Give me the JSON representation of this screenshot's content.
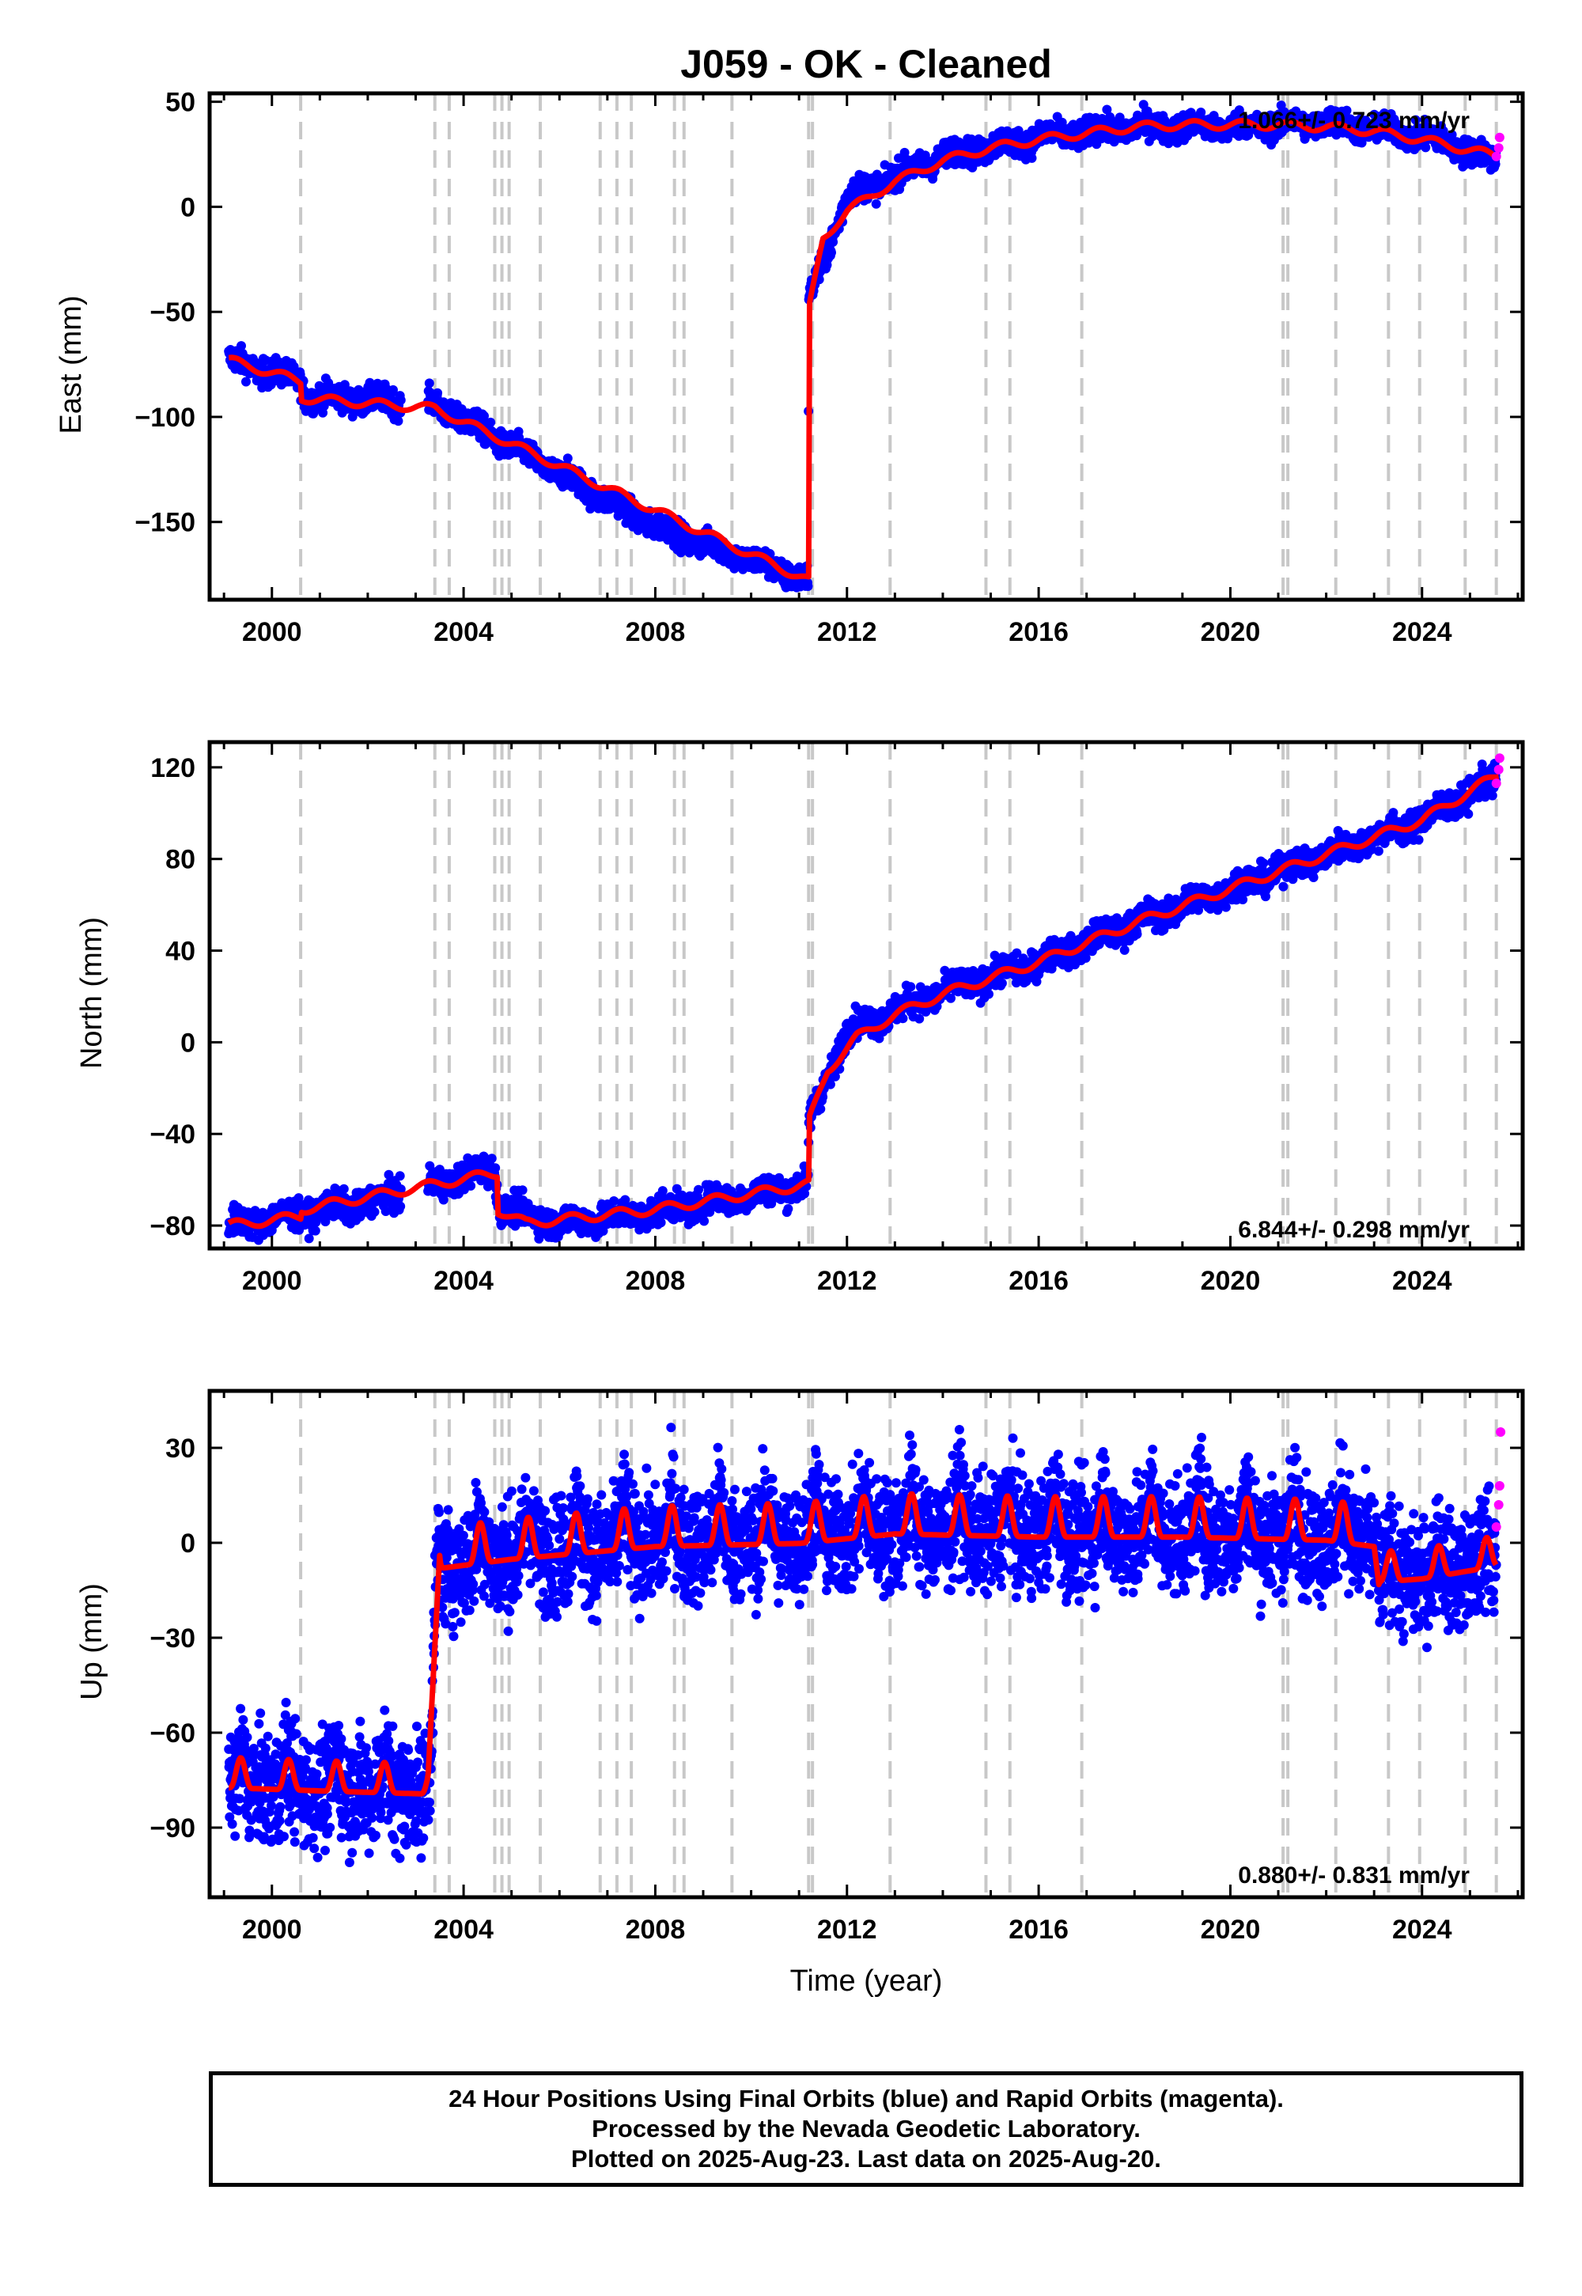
{
  "title": "J059  - OK - Cleaned",
  "xlabel": "Time (year)",
  "footer": {
    "line1": "24 Hour Positions Using Final Orbits (blue) and Rapid Orbits (magenta).",
    "line2": "Processed by the Nevada Geodetic Laboratory.",
    "line3": "Plotted on 2025-Aug-23. Last data on 2025-Aug-20."
  },
  "colors": {
    "final_orbits": "#0000ff",
    "rapid_orbits": "#ff00ff",
    "model_fit": "#ff0000",
    "equipment_changes": "#c8c8c8"
  },
  "chart_data": [
    {
      "type": "scatter",
      "component": "East",
      "ylabel": "East (mm)",
      "rate_label": "1.066+/- 0.723 mm/yr",
      "xlim": [
        1998.7,
        2026.1
      ],
      "ylim": [
        -187,
        54
      ],
      "xticks": [
        2000,
        2004,
        2008,
        2012,
        2016,
        2020,
        2024
      ],
      "yticks": [
        50,
        0,
        -50,
        -100,
        -150
      ],
      "ytick_labels": [
        "50",
        "0",
        "−50",
        "−100",
        "−150"
      ],
      "grid": false,
      "series": [
        {
          "name": "Final Orbits",
          "x": [
            1999.1,
            2000.6,
            2000.7,
            2003.4,
            2006,
            2008,
            2011.19,
            2011.2,
            2012,
            2014,
            2016,
            2018,
            2020,
            2022,
            2024,
            2025.55
          ],
          "values": [
            -73,
            -83,
            -90,
            -94,
            -127,
            -152,
            -178,
            -45,
            5,
            24,
            33,
            38,
            38,
            40,
            34,
            22
          ]
        },
        {
          "name": "Rapid Orbits",
          "x": [
            2025.55,
            2025.6,
            2025.62
          ],
          "values": [
            24,
            28,
            33
          ]
        }
      ],
      "model_fit": {
        "x": [
          1999.1,
          2000.6,
          2000.6,
          2003.4,
          2011.2,
          2011.2,
          2011.5,
          2012,
          2013,
          2014,
          2015,
          2016,
          2017,
          2018,
          2019,
          2020,
          2021,
          2022,
          2023,
          2024,
          2025,
          2025.6
        ],
        "values": [
          -73,
          -83,
          -91,
          -96,
          -178,
          -50,
          -15,
          -2,
          12,
          22,
          28,
          32,
          35,
          38,
          39,
          39,
          39,
          38,
          36,
          32,
          27,
          24
        ]
      },
      "vlines": [
        2000.6,
        2003.4,
        2003.7,
        2004.65,
        2004.8,
        2004.95,
        2005.6,
        2006.85,
        2007.2,
        2007.5,
        2008.4,
        2008.6,
        2009.6,
        2011.2,
        2011.28,
        2012.9,
        2014.9,
        2015.4,
        2016.9,
        2021.1,
        2021.2,
        2022.2,
        2023.3,
        2023.95,
        2024.9,
        2025.55
      ]
    },
    {
      "type": "scatter",
      "component": "North",
      "ylabel": "North (mm)",
      "rate_label": "6.844+/- 0.298 mm/yr",
      "xlim": [
        1998.7,
        2026.1
      ],
      "ylim": [
        -90,
        131
      ],
      "xticks": [
        2000,
        2004,
        2008,
        2012,
        2016,
        2020,
        2024
      ],
      "yticks": [
        120,
        80,
        40,
        0,
        -40,
        -80
      ],
      "ytick_labels": [
        "120",
        "80",
        "40",
        "0",
        "−40",
        "−80"
      ],
      "grid": false,
      "series": [
        {
          "name": "Final Orbits",
          "x": [
            1999.1,
            2000.6,
            2002,
            2003.4,
            2004.65,
            2004.75,
            2006,
            2008,
            2011.19,
            2011.2,
            2012,
            2014,
            2016,
            2018,
            2020,
            2022,
            2024,
            2025.55
          ],
          "values": [
            -80,
            -75,
            -70,
            -62,
            -55,
            -72,
            -79,
            -74,
            -62,
            -35,
            5,
            22,
            35,
            52,
            67,
            82,
            97,
            115
          ]
        },
        {
          "name": "Rapid Orbits",
          "x": [
            2025.55,
            2025.6,
            2025.62
          ],
          "values": [
            113,
            119,
            124
          ]
        }
      ],
      "model_fit": {
        "x": [
          1999.1,
          2000.6,
          2000.6,
          2003.4,
          2004.7,
          2004.7,
          2005.3,
          2008,
          2011.2,
          2011.2,
          2011.6,
          2012.2,
          2013,
          2014,
          2016,
          2018,
          2020,
          2022,
          2024,
          2025.6
        ],
        "values": [
          -80,
          -76,
          -73,
          -62,
          -57,
          -73,
          -79,
          -73,
          -62,
          -35,
          -12,
          2,
          12,
          21,
          35,
          52,
          67,
          82,
          97,
          117
        ]
      },
      "vlines": [
        2000.6,
        2003.4,
        2003.7,
        2004.65,
        2004.8,
        2004.95,
        2005.6,
        2006.85,
        2007.2,
        2007.5,
        2008.4,
        2008.6,
        2009.6,
        2011.2,
        2011.28,
        2012.9,
        2014.9,
        2015.4,
        2016.9,
        2021.1,
        2021.2,
        2022.2,
        2023.3,
        2023.95,
        2024.9,
        2025.55
      ]
    },
    {
      "type": "scatter",
      "component": "Up",
      "ylabel": "Up (mm)",
      "rate_label": "0.880+/- 0.831 mm/yr",
      "xlim": [
        1998.7,
        2026.1
      ],
      "ylim": [
        -112,
        48
      ],
      "xticks": [
        2000,
        2004,
        2008,
        2012,
        2016,
        2020,
        2024
      ],
      "yticks": [
        30,
        0,
        -30,
        -60,
        -90
      ],
      "ytick_labels": [
        "30",
        "0",
        "−30",
        "−60",
        "−90"
      ],
      "grid": false,
      "series": [
        {
          "name": "Final Orbits",
          "x": [
            1999.1,
            2001,
            2003.3,
            2003.45,
            2005,
            2008,
            2011,
            2013,
            2016,
            2019,
            2022,
            2023.0,
            2023.1,
            2024,
            2025.55
          ],
          "values": [
            -75,
            -76,
            -77,
            -5,
            -2,
            2,
            3,
            6,
            5,
            5,
            4,
            2,
            -10,
            -9,
            -5
          ]
        },
        {
          "name": "Rapid Orbits",
          "x": [
            2025.55,
            2025.6,
            2025.62,
            2025.64
          ],
          "values": [
            5,
            12,
            18,
            35
          ]
        }
      ],
      "vlines": [
        2000.6,
        2003.4,
        2003.7,
        2004.65,
        2004.8,
        2004.95,
        2005.6,
        2006.85,
        2007.2,
        2007.5,
        2008.4,
        2008.6,
        2009.6,
        2011.2,
        2011.28,
        2012.9,
        2014.9,
        2015.4,
        2016.9,
        2021.1,
        2021.2,
        2022.2,
        2023.3,
        2023.95,
        2024.9,
        2025.55
      ]
    }
  ]
}
